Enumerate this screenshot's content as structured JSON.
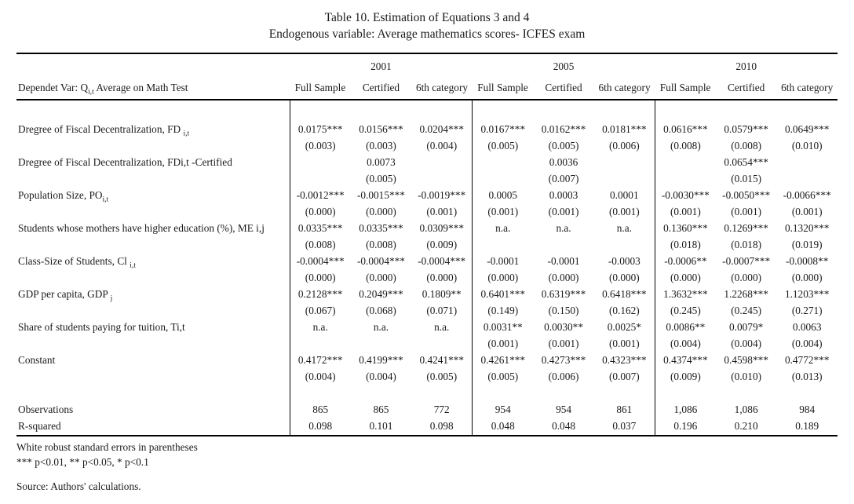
{
  "title": "Table 10. Estimation of Equations 3 and 4",
  "subtitle": "Endogenous variable: Average mathematics scores- ICFES exam",
  "header": {
    "dependent_var": {
      "prefix": "Dependet Var:  Q",
      "sub": "i,t",
      "suffix": "  Average on Math Test"
    },
    "year_groups": [
      "2001",
      "2005",
      "2010"
    ],
    "sample_columns": [
      "Full Sample",
      "Certified",
      "6th category"
    ]
  },
  "table": {
    "variables": [
      {
        "label": {
          "text": "Dregree of Fiscal Decentralization,  FD ",
          "sub": "i,t",
          "tail": ""
        },
        "coef": [
          "0.0175***",
          "0.0156***",
          "0.0204***",
          "0.0167***",
          "0.0162***",
          "0.0181***",
          "0.0616***",
          "0.0579***",
          "0.0649***"
        ],
        "se": [
          "(0.003)",
          "(0.003)",
          "(0.004)",
          "(0.005)",
          "(0.005)",
          "(0.006)",
          "(0.008)",
          "(0.008)",
          "(0.010)"
        ]
      },
      {
        "label": {
          "text": "Dregree of Fiscal Decentralization, FDi,t -Certified",
          "sub": "",
          "tail": ""
        },
        "coef": [
          "",
          "0.0073",
          "",
          "",
          "0.0036",
          "",
          "",
          "0.0654***",
          ""
        ],
        "se": [
          "",
          "(0.005)",
          "",
          "",
          "(0.007)",
          "",
          "",
          "(0.015)",
          ""
        ]
      },
      {
        "label": {
          "text": "Population Size,  PO",
          "sub": "i,t",
          "tail": ""
        },
        "coef": [
          "-0.0012***",
          "-0.0015***",
          "-0.0019***",
          "0.0005",
          "0.0003",
          "0.0001",
          "-0.0030***",
          "-0.0050***",
          "-0.0066***"
        ],
        "se": [
          "(0.000)",
          "(0.000)",
          "(0.001)",
          "(0.001)",
          "(0.001)",
          "(0.001)",
          "(0.001)",
          "(0.001)",
          "(0.001)"
        ]
      },
      {
        "label": {
          "text": "Students whose mothers have higher education (%), ME i,j",
          "sub": "",
          "tail": ""
        },
        "coef": [
          "0.0335***",
          "0.0335***",
          "0.0309***",
          "n.a.",
          "n.a.",
          "n.a.",
          "0.1360***",
          "0.1269***",
          "0.1320***"
        ],
        "se": [
          "(0.008)",
          "(0.008)",
          "(0.009)",
          "",
          "",
          "",
          "(0.018)",
          "(0.018)",
          "(0.019)"
        ]
      },
      {
        "label": {
          "text": "Class-Size of Students, Cl ",
          "sub": "i,t",
          "tail": ""
        },
        "coef": [
          "-0.0004***",
          "-0.0004***",
          "-0.0004***",
          "-0.0001",
          "-0.0001",
          "-0.0003",
          "-0.0006**",
          "-0.0007***",
          "-0.0008**"
        ],
        "se": [
          "(0.000)",
          "(0.000)",
          "(0.000)",
          "(0.000)",
          "(0.000)",
          "(0.000)",
          "(0.000)",
          "(0.000)",
          "(0.000)"
        ]
      },
      {
        "label": {
          "text": "GDP per capita, GDP ",
          "sub": "j",
          "tail": ""
        },
        "coef": [
          "0.2128***",
          "0.2049***",
          "0.1809**",
          "0.6401***",
          "0.6319***",
          "0.6418***",
          "1.3632***",
          "1.2268***",
          "1.1203***"
        ],
        "se": [
          "(0.067)",
          "(0.068)",
          "(0.071)",
          "(0.149)",
          "(0.150)",
          "(0.162)",
          "(0.245)",
          "(0.245)",
          "(0.271)"
        ]
      },
      {
        "label": {
          "text": "Share of students paying for tuition, Ti,t",
          "sub": "",
          "tail": ""
        },
        "coef": [
          "n.a.",
          "n.a.",
          "n.a.",
          "0.0031**",
          "0.0030**",
          "0.0025*",
          "0.0086**",
          "0.0079*",
          "0.0063"
        ],
        "se": [
          "",
          "",
          "",
          "(0.001)",
          "(0.001)",
          "(0.001)",
          "(0.004)",
          "(0.004)",
          "(0.004)"
        ]
      },
      {
        "label": {
          "text": "Constant",
          "sub": "",
          "tail": ""
        },
        "coef": [
          "0.4172***",
          "0.4199***",
          "0.4241***",
          "0.4261***",
          "0.4273***",
          "0.4323***",
          "0.4374***",
          "0.4598***",
          "0.4772***"
        ],
        "se": [
          "(0.004)",
          "(0.004)",
          "(0.005)",
          "(0.005)",
          "(0.006)",
          "(0.007)",
          "(0.009)",
          "(0.010)",
          "(0.013)"
        ]
      }
    ],
    "stats": [
      {
        "label": "Observations",
        "values": [
          "865",
          "865",
          "772",
          "954",
          "954",
          "861",
          "1,086",
          "1,086",
          "984"
        ]
      },
      {
        "label": "R-squared",
        "values": [
          "0.098",
          "0.101",
          "0.098",
          "0.048",
          "0.048",
          "0.037",
          "0.196",
          "0.210",
          "0.189"
        ]
      }
    ]
  },
  "footnotes": [
    "White robust standard errors in parentheses",
    "*** p<0.01, ** p<0.05, * p<0.1"
  ],
  "source": "Source: Authors' calculations."
}
